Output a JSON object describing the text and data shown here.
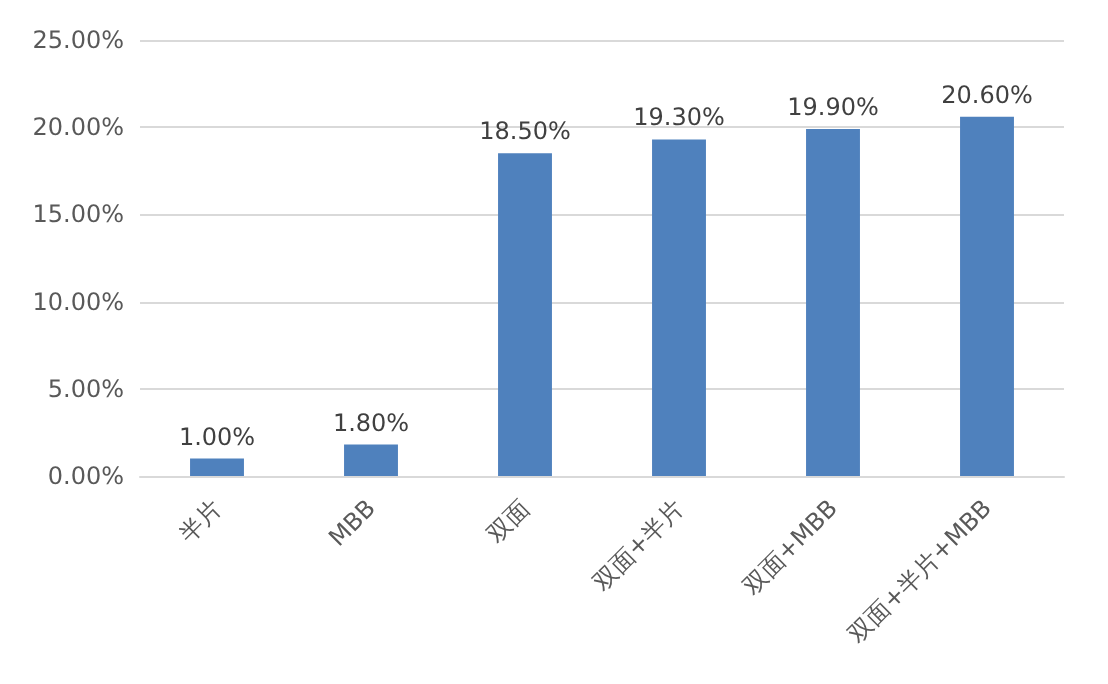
{
  "chart_data": {
    "type": "bar",
    "categories": [
      "半片",
      "MBB",
      "双面",
      "双面+半片",
      "双面+MBB",
      "双面+半片+MBB"
    ],
    "values": [
      1.0,
      1.8,
      18.5,
      19.3,
      19.9,
      20.6
    ],
    "value_labels": [
      "1.00%",
      "1.80%",
      "18.50%",
      "19.30%",
      "19.90%",
      "20.60%"
    ],
    "color": "#4f81bd",
    "ylim": [
      0,
      25
    ],
    "yticks": [
      {
        "value": 0,
        "label": "0.00%"
      },
      {
        "value": 5,
        "label": "5.00%"
      },
      {
        "value": 10,
        "label": "10.00%"
      },
      {
        "value": 15,
        "label": "15.00%"
      },
      {
        "value": 20,
        "label": "20.00%"
      },
      {
        "value": 25,
        "label": "25.00%"
      }
    ],
    "grid": "y"
  }
}
